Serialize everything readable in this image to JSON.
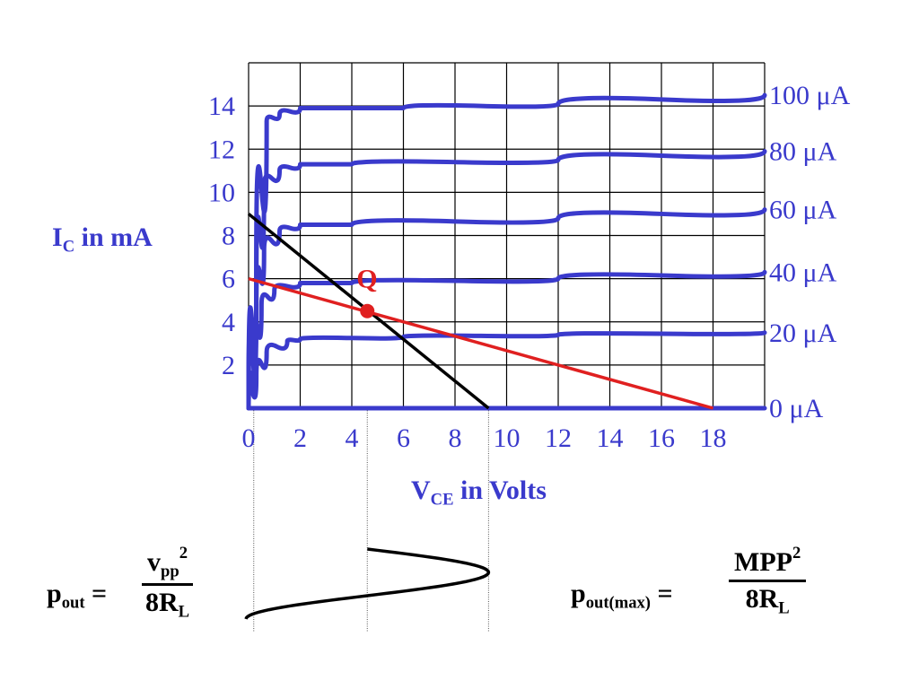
{
  "chart_data": {
    "type": "line",
    "xlabel": {
      "main": "V",
      "sub": "CE",
      "rest": " in Volts"
    },
    "ylabel": {
      "main": "I",
      "sub": "C",
      "rest": " in mA"
    },
    "xlim": [
      0,
      20
    ],
    "ylim": [
      0,
      16
    ],
    "x_ticks": [
      "0",
      "2",
      "4",
      "6",
      "8",
      "10",
      "12",
      "14",
      "16",
      "18"
    ],
    "y_ticks": [
      "2",
      "4",
      "6",
      "8",
      "10",
      "12",
      "14"
    ],
    "grid": true,
    "series": [
      {
        "name": "100 μA",
        "color": "#3a3acc",
        "points": [
          [
            0,
            0
          ],
          [
            0.3,
            7
          ],
          [
            0.7,
            13.3
          ],
          [
            1.2,
            13.6
          ],
          [
            2,
            13.9
          ],
          [
            6,
            13.9
          ],
          [
            12,
            14.1
          ],
          [
            20,
            14.5
          ]
        ]
      },
      {
        "name": "80 μA",
        "color": "#3a3acc",
        "points": [
          [
            0,
            0
          ],
          [
            0.3,
            6
          ],
          [
            0.6,
            10.3
          ],
          [
            1.2,
            11
          ],
          [
            2,
            11.3
          ],
          [
            4,
            11.3
          ],
          [
            12,
            11.5
          ],
          [
            20,
            11.9
          ]
        ]
      },
      {
        "name": "60 μA",
        "color": "#3a3acc",
        "points": [
          [
            0,
            0
          ],
          [
            0.3,
            5
          ],
          [
            0.6,
            7.3
          ],
          [
            1.2,
            8.2
          ],
          [
            2,
            8.5
          ],
          [
            4,
            8.5
          ],
          [
            12,
            8.8
          ],
          [
            20,
            9.2
          ]
        ]
      },
      {
        "name": "40 μA",
        "color": "#3a3acc",
        "points": [
          [
            0,
            0
          ],
          [
            0.2,
            2.5
          ],
          [
            0.5,
            4.8
          ],
          [
            1,
            5.5
          ],
          [
            2,
            5.8
          ],
          [
            4,
            5.8
          ],
          [
            12,
            6
          ],
          [
            20,
            6.3
          ]
        ]
      },
      {
        "name": "20 μA",
        "color": "#3a3acc",
        "points": [
          [
            0,
            0
          ],
          [
            0.3,
            1.5
          ],
          [
            0.7,
            2.6
          ],
          [
            1.5,
            3.1
          ],
          [
            2,
            3.2
          ],
          [
            6,
            3.3
          ],
          [
            12,
            3.4
          ],
          [
            20,
            3.5
          ]
        ]
      },
      {
        "name": "0 μA",
        "color": "#3a3acc",
        "points": [
          [
            0,
            0
          ],
          [
            20,
            0
          ]
        ]
      }
    ],
    "load_lines": [
      {
        "color": "#000000",
        "points": [
          [
            0,
            9
          ],
          [
            9.3,
            0
          ]
        ]
      },
      {
        "color": "#e02020",
        "points": [
          [
            0,
            6
          ],
          [
            18,
            0
          ]
        ]
      }
    ],
    "q_point": {
      "label": "Q",
      "x": 4.6,
      "y": 4.5,
      "color": "#e02020"
    },
    "swing_marks_x": [
      0.2,
      4.6,
      9.3
    ]
  },
  "formula_left": {
    "lhs_main": "p",
    "lhs_sub": "out",
    "equals": " =",
    "num_main": "v",
    "num_sub": "pp",
    "num_sup": "2",
    "den_main": "8R",
    "den_sub": "L"
  },
  "formula_right": {
    "lhs_main": "p",
    "lhs_sub": "out(max)",
    "equals": " =",
    "num_main": "MPP",
    "num_sup": "2",
    "den_main": "8R",
    "den_sub": "L"
  }
}
